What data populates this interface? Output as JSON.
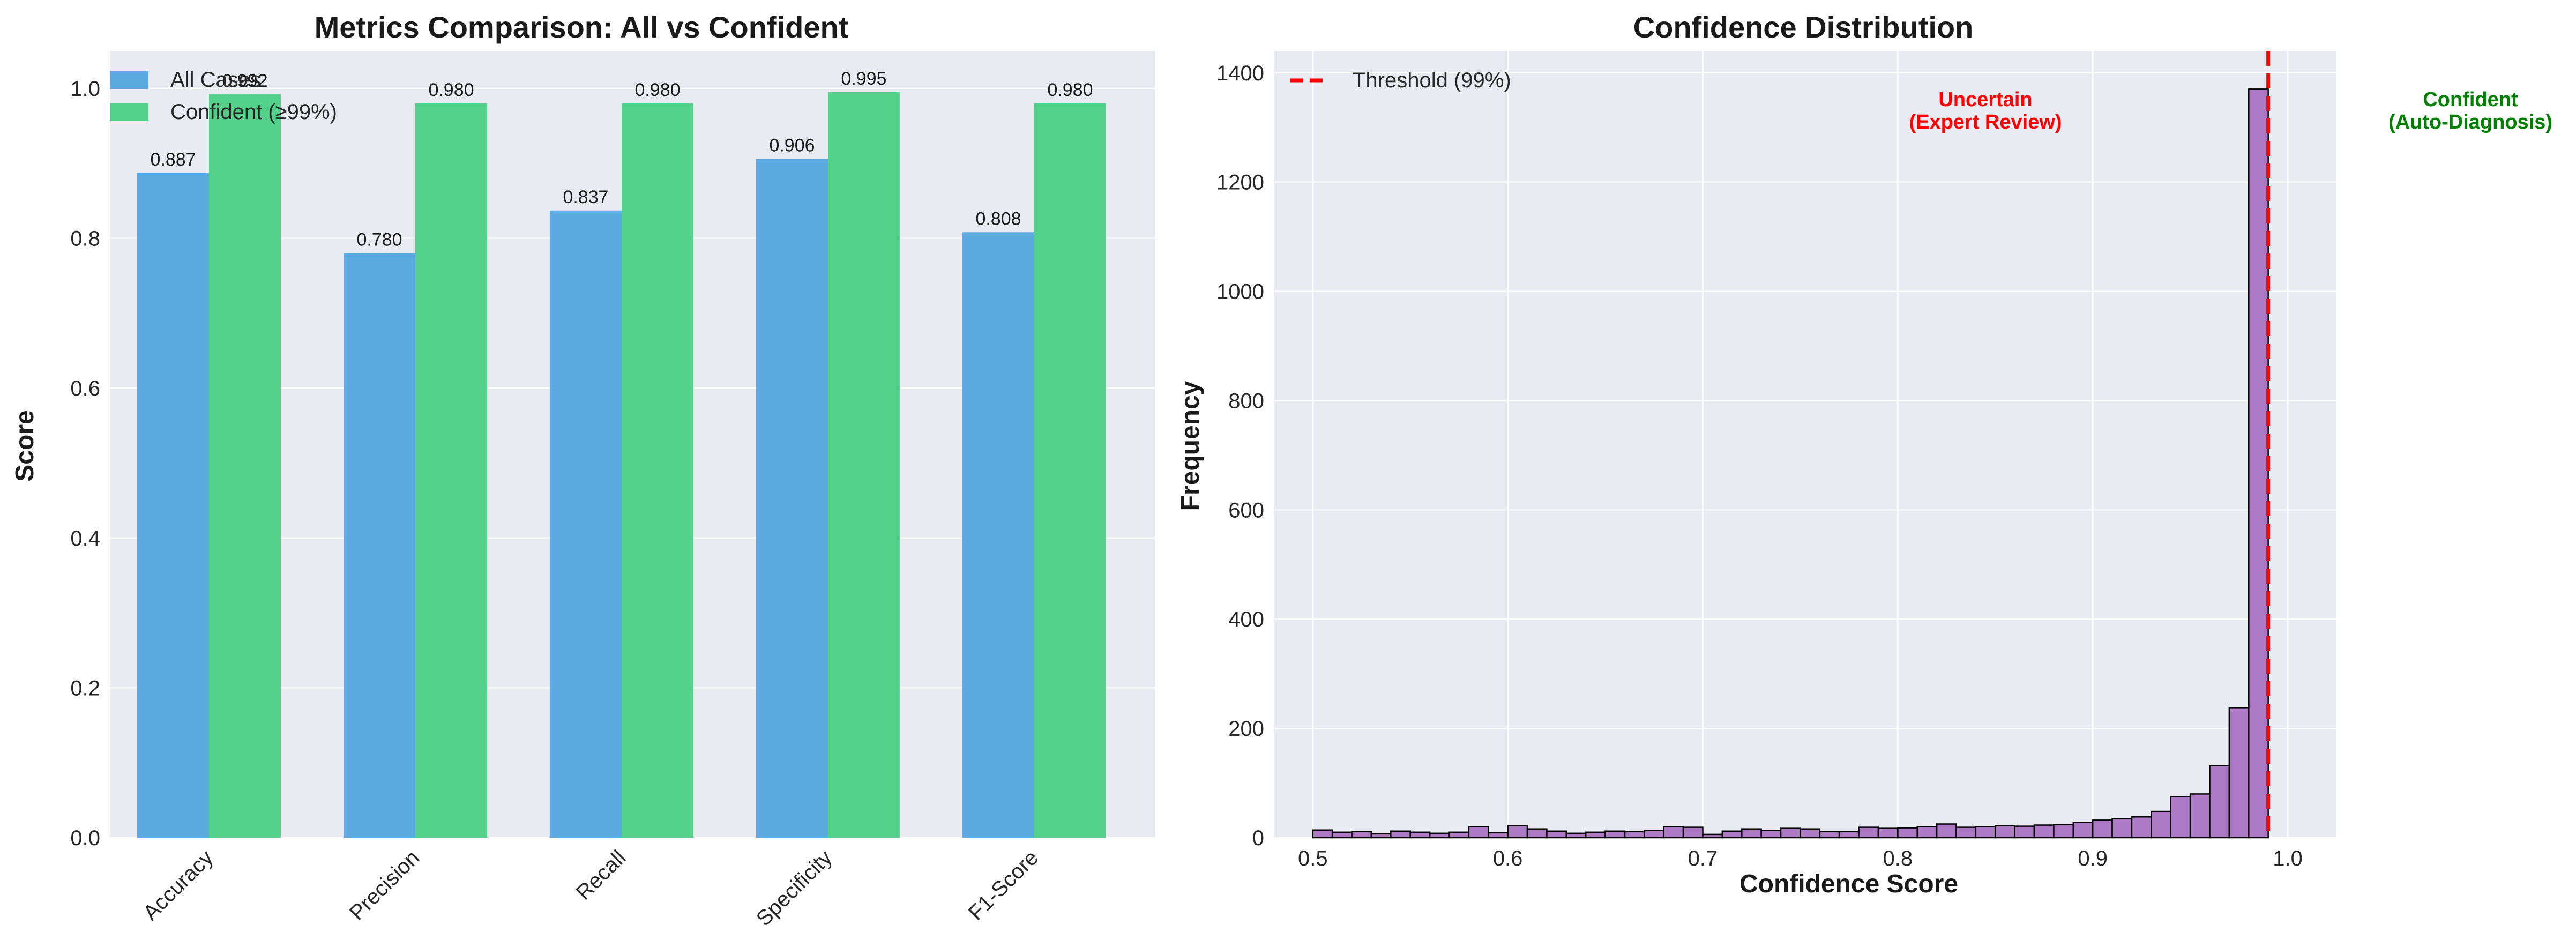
{
  "chart_data": [
    {
      "type": "bar",
      "title": "Metrics Comparison: All vs Confident",
      "xlabel": "",
      "ylabel": "Score",
      "ylim": [
        0,
        1.05
      ],
      "yticks": [
        "0.0",
        "0.2",
        "0.4",
        "0.6",
        "0.8",
        "1.0"
      ],
      "categories": [
        "Accuracy",
        "Precision",
        "Recall",
        "Specificity",
        "F1-Score"
      ],
      "series": [
        {
          "name": "All Cases",
          "color": "#5DA9E1",
          "values": [
            0.887,
            0.78,
            0.837,
            0.906,
            0.808
          ],
          "labels": [
            "0.887",
            "0.780",
            "0.837",
            "0.906",
            "0.808"
          ]
        },
        {
          "name": "Confident (≥99%)",
          "color": "#53D08A",
          "values": [
            0.992,
            0.98,
            0.98,
            0.995,
            0.98
          ],
          "labels": [
            "0.992",
            "0.980",
            "0.980",
            "0.995",
            "0.980"
          ]
        }
      ],
      "legend": "top-left",
      "grid": true
    },
    {
      "type": "histogram",
      "title": "Confidence Distribution",
      "xlabel": "Confidence Score",
      "ylabel": "Frequency",
      "xlim": [
        0.48,
        1.025
      ],
      "ylim": [
        0,
        1440
      ],
      "xticks": [
        "0.5",
        "0.6",
        "0.7",
        "0.8",
        "0.9",
        "1.0"
      ],
      "yticks": [
        "0",
        "200",
        "400",
        "600",
        "800",
        "1000",
        "1200",
        "1400"
      ],
      "bin_start": 0.5,
      "bin_width": 0.01,
      "bar_color": "#AF7AC5",
      "counts": [
        14,
        10,
        11,
        7,
        12,
        10,
        8,
        10,
        20,
        9,
        22,
        16,
        12,
        8,
        10,
        12,
        11,
        13,
        20,
        19,
        6,
        12,
        16,
        13,
        17,
        16,
        11,
        11,
        19,
        17,
        18,
        20,
        25,
        19,
        20,
        22,
        21,
        23,
        24,
        28,
        32,
        35,
        38,
        48,
        75,
        80,
        132,
        238,
        1370,
        0
      ],
      "threshold": {
        "x": 0.99,
        "label": "Threshold (99%)",
        "color": "#FF0000"
      },
      "annotations": [
        {
          "lines": [
            "Uncertain",
            "(Expert Review)"
          ],
          "color": "#FF0000"
        },
        {
          "lines": [
            "Confident",
            "(Auto-Diagnosis)"
          ],
          "color": "#008000"
        }
      ],
      "legend": "top-left",
      "grid": true
    }
  ]
}
